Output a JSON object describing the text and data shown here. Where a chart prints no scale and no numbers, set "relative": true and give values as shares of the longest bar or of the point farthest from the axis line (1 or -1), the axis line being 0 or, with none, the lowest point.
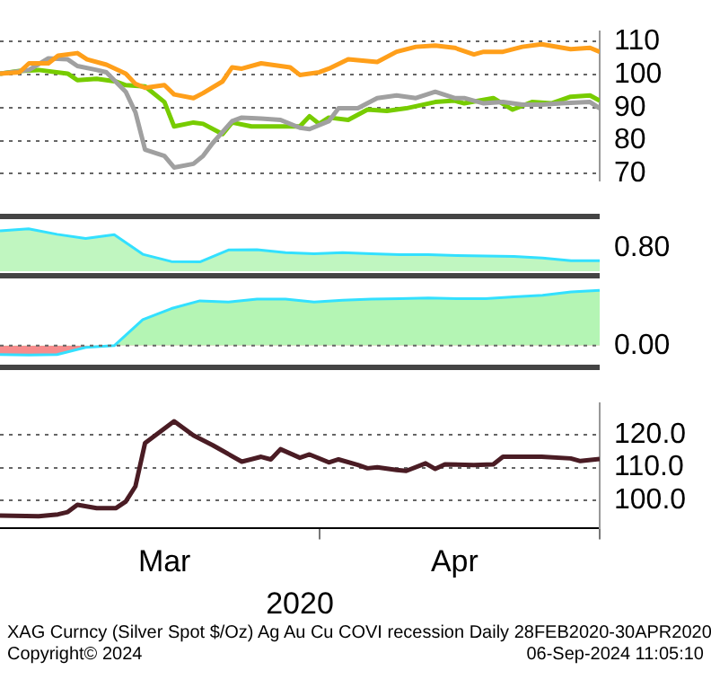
{
  "chart_data": [
    {
      "type": "line",
      "xlim": [
        "2020-02-28",
        "2020-04-30"
      ],
      "ylim": [
        68,
        113
      ],
      "yticks": [
        70,
        80,
        90,
        100,
        110
      ],
      "grid": "y",
      "tick_labels": "y",
      "series": [
        {
          "color": "#ff9f1a",
          "x": [
            "2020-02-28",
            "2020-03-01",
            "2020-03-02",
            "2020-03-04",
            "2020-03-05",
            "2020-03-07",
            "2020-03-08",
            "2020-03-10",
            "2020-03-12",
            "2020-03-13",
            "2020-03-14",
            "2020-03-16",
            "2020-03-17",
            "2020-03-19",
            "2020-03-20",
            "2020-03-22",
            "2020-03-23",
            "2020-03-24",
            "2020-03-26",
            "2020-03-29",
            "2020-03-30",
            "2020-04-01",
            "2020-04-02",
            "2020-04-04",
            "2020-04-07",
            "2020-04-09",
            "2020-04-11",
            "2020-04-13",
            "2020-04-15",
            "2020-04-17",
            "2020-04-18",
            "2020-04-20",
            "2020-04-22",
            "2020-04-24",
            "2020-04-27",
            "2020-04-29",
            "2020-04-30"
          ],
          "values": [
            100.3,
            100.7,
            103.4,
            103.4,
            105.7,
            106.5,
            104.6,
            103.0,
            100.3,
            97.2,
            96.0,
            96.8,
            94.0,
            92.9,
            94.4,
            97.9,
            102.2,
            101.8,
            103.4,
            102.2,
            99.9,
            100.7,
            101.8,
            104.6,
            103.8,
            106.9,
            108.4,
            108.8,
            108.1,
            106.1,
            106.9,
            106.9,
            108.4,
            109.2,
            107.7,
            108.1,
            106.9
          ]
        },
        {
          "color": "#a0a0a0",
          "x": [
            "2020-02-28",
            "2020-03-02",
            "2020-03-04",
            "2020-03-06",
            "2020-03-07",
            "2020-03-09",
            "2020-03-10",
            "2020-03-12",
            "2020-03-13",
            "2020-03-14",
            "2020-03-16",
            "2020-03-17",
            "2020-03-19",
            "2020-03-20",
            "2020-03-21",
            "2020-03-23",
            "2020-03-24",
            "2020-03-26",
            "2020-03-28",
            "2020-03-30",
            "2020-03-31",
            "2020-04-02",
            "2020-04-03",
            "2020-04-05",
            "2020-04-07",
            "2020-04-09",
            "2020-04-11",
            "2020-04-13",
            "2020-04-15",
            "2020-04-16",
            "2020-04-18",
            "2020-04-20",
            "2020-04-22",
            "2020-04-24",
            "2020-04-26",
            "2020-04-29",
            "2020-04-30"
          ],
          "values": [
            100.3,
            101.4,
            104.9,
            104.6,
            102.6,
            101.4,
            100.7,
            94.8,
            88.6,
            77.3,
            75.4,
            71.9,
            73.0,
            75.4,
            79.3,
            85.9,
            87.0,
            86.7,
            86.3,
            83.9,
            83.5,
            85.9,
            89.8,
            89.8,
            92.9,
            93.7,
            92.9,
            94.8,
            92.9,
            92.9,
            91.3,
            91.7,
            90.9,
            90.9,
            91.3,
            91.7,
            89.8
          ]
        },
        {
          "color": "#77cc00",
          "x": [
            "2020-02-28",
            "2020-03-01",
            "2020-03-03",
            "2020-03-06",
            "2020-03-07",
            "2020-03-09",
            "2020-03-11",
            "2020-03-12",
            "2020-03-14",
            "2020-03-16",
            "2020-03-17",
            "2020-03-19",
            "2020-03-20",
            "2020-03-22",
            "2020-03-23",
            "2020-03-25",
            "2020-03-28",
            "2020-03-30",
            "2020-03-31",
            "2020-04-01",
            "2020-04-02",
            "2020-04-04",
            "2020-04-06",
            "2020-04-08",
            "2020-04-10",
            "2020-04-13",
            "2020-04-15",
            "2020-04-16",
            "2020-04-19",
            "2020-04-21",
            "2020-04-23",
            "2020-04-25",
            "2020-04-27",
            "2020-04-29",
            "2020-04-30"
          ],
          "values": [
            100.3,
            101.1,
            101.4,
            100.3,
            98.3,
            98.7,
            97.9,
            96.8,
            96.4,
            91.7,
            84.3,
            85.5,
            85.1,
            82.0,
            85.5,
            84.3,
            84.3,
            84.3,
            87.4,
            85.1,
            87.0,
            86.3,
            89.4,
            89.0,
            89.8,
            91.7,
            92.1,
            91.3,
            92.9,
            89.4,
            91.7,
            91.3,
            93.3,
            93.7,
            92.1
          ]
        }
      ]
    },
    {
      "type": "area",
      "relative": true,
      "categories": [
        null,
        null,
        null,
        null,
        null,
        null,
        null,
        null,
        null,
        null,
        null,
        null,
        null,
        null,
        null,
        null,
        null,
        null,
        null,
        null,
        null,
        null
      ],
      "annotations": [
        "0.80"
      ],
      "tick_labels": false,
      "series": [
        {
          "color": "#33e0ff",
          "values": [
            0.95,
            1,
            0.87,
            0.77,
            0.86,
            0.4,
            0.23,
            0.22,
            0.5,
            0.51,
            0.44,
            0.41,
            0.44,
            0.41,
            0.39,
            0.39,
            0.37,
            0.36,
            0.35,
            0.31,
            0.25,
            0.25
          ]
        }
      ]
    },
    {
      "type": "area",
      "relative": true,
      "categories": [
        null,
        null,
        null,
        null,
        null,
        null,
        null,
        null,
        null,
        null,
        null,
        null,
        null,
        null,
        null,
        null,
        null,
        null,
        null,
        null,
        null,
        null
      ],
      "annotations": [
        "0.00"
      ],
      "ref_lines": [
        {
          "axis": "y",
          "value": 0
        }
      ],
      "tick_labels": false,
      "series": [
        {
          "color": "#33e0ff",
          "values": [
            -0.16,
            -0.17,
            -0.16,
            -0.03,
            0,
            0.47,
            0.67,
            0.81,
            0.79,
            0.84,
            0.84,
            0.79,
            0.82,
            0.84,
            0.85,
            0.86,
            0.85,
            0.85,
            0.88,
            0.91,
            0.97,
            1
          ]
        }
      ]
    },
    {
      "type": "line",
      "xlim": [
        "2020-02-28",
        "2020-04-30"
      ],
      "ylim": [
        91.5,
        129.5
      ],
      "yticks": [
        {
          "value": 100,
          "label": "100.0"
        },
        {
          "value": 110,
          "label": "110.0"
        },
        {
          "value": 120,
          "label": "120.0"
        }
      ],
      "xticks": [
        {
          "value": "2020-03-16",
          "label": "Mar"
        },
        {
          "value": "2020-04-01",
          "label": null
        },
        {
          "value": "2020-04-15",
          "label": "Apr"
        },
        {
          "value": "2020-04-30",
          "label": null
        }
      ],
      "grid": "y",
      "xlabel": "2020",
      "annotations": [
        "XAG Curncy (Silver Spot  $/Oz) Ag Au Cu COVI recession  Daily 28FEB2020-30APR2020",
        "Copyright© 2024",
        "06-Sep-2024 11:05:10"
      ],
      "series": [
        {
          "color": "#4a1c24",
          "x": [
            "2020-02-28",
            "2020-03-03",
            "2020-03-05",
            "2020-03-06",
            "2020-03-07",
            "2020-03-09",
            "2020-03-11",
            "2020-03-12",
            "2020-03-13",
            "2020-03-14",
            "2020-03-17",
            "2020-03-19",
            "2020-03-21",
            "2020-03-24",
            "2020-03-26",
            "2020-03-27",
            "2020-03-28",
            "2020-03-30",
            "2020-03-31",
            "2020-04-02",
            "2020-04-03",
            "2020-04-05",
            "2020-04-06",
            "2020-04-07",
            "2020-04-09",
            "2020-04-10",
            "2020-04-12",
            "2020-04-13",
            "2020-04-14",
            "2020-04-17",
            "2020-04-19",
            "2020-04-20",
            "2020-04-24",
            "2020-04-27",
            "2020-04-28",
            "2020-04-30"
          ],
          "values": [
            95.4,
            95.2,
            95.8,
            96.5,
            98.7,
            97.7,
            97.7,
            99.7,
            104.3,
            117.5,
            124.1,
            119.8,
            116.8,
            111.8,
            113.3,
            112.5,
            115.6,
            113.0,
            114.0,
            111.6,
            112.5,
            110.8,
            109.8,
            110.1,
            109.3,
            109.0,
            111.3,
            109.6,
            111.0,
            110.8,
            111.0,
            113.3,
            113.3,
            112.8,
            112.0,
            112.6
          ]
        }
      ]
    }
  ]
}
